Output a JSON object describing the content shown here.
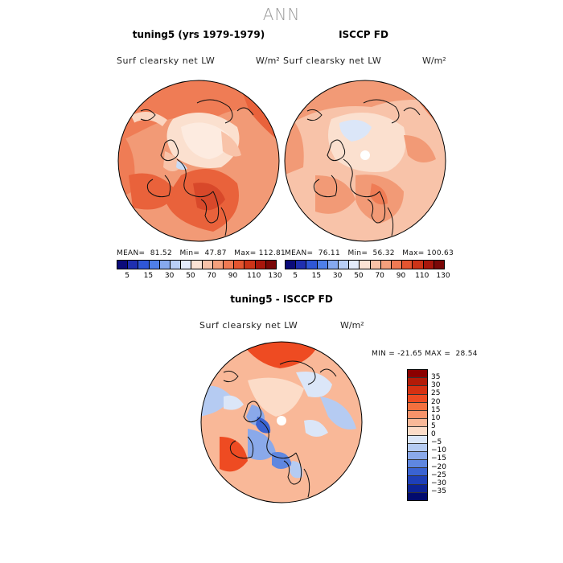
{
  "title": "ANN",
  "panels": [
    {
      "name": "tuning5 (yrs 1979-1979)",
      "variable": "Surf clearsky net LW",
      "units": "W/m²",
      "mean": "81.52",
      "min": "47.87",
      "max": "112.81"
    },
    {
      "name": "ISCCP FD",
      "variable": "Surf clearsky net LW",
      "units": "W/m²",
      "mean": "76.11",
      "min": "56.32",
      "max": "100.63"
    },
    {
      "name": "tuning5 - ISCCP FD",
      "variable": "Surf clearsky net LW",
      "units": "W/m²",
      "min": "-21.65",
      "max": "28.54"
    }
  ],
  "colorbar_abs": {
    "labels": [
      "5",
      "15",
      "30",
      "50",
      "70",
      "90",
      "110",
      "130"
    ],
    "colors": [
      "#0b0b7a",
      "#1f2fb0",
      "#2f57d6",
      "#4f7fe8",
      "#86a9ef",
      "#b9cff6",
      "#e4ecfb",
      "#fbe3d5",
      "#f8c2a8",
      "#f4a07c",
      "#ef7a53",
      "#e45530",
      "#cc3418",
      "#a8160c",
      "#7a0707"
    ]
  },
  "colorbar_diff": {
    "labels": [
      "35",
      "30",
      "25",
      "20",
      "15",
      "10",
      "5",
      "0",
      "−5",
      "−10",
      "−15",
      "−20",
      "−25",
      "−30",
      "−35"
    ],
    "colors": [
      "#8b0000",
      "#b31b08",
      "#d63112",
      "#ee4b22",
      "#f4703e",
      "#f7936a",
      "#f9b898",
      "#fcdcc8",
      "#dbe6f8",
      "#b5cbf2",
      "#8aa9ea",
      "#5f87e0",
      "#3a63d2",
      "#1e3fb8",
      "#0d2395",
      "#020b6e"
    ]
  }
}
